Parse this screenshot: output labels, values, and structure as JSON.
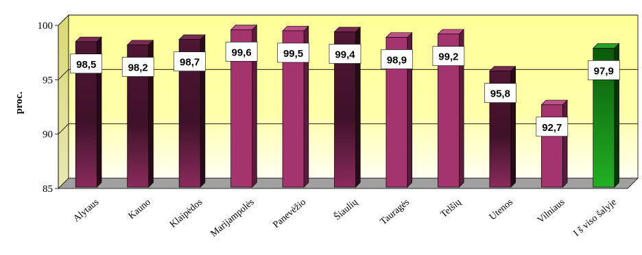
{
  "chart_data": {
    "type": "bar",
    "ylabel": "proc.",
    "ylim": [
      85,
      100
    ],
    "yticks": [
      85,
      90,
      95,
      100
    ],
    "grid": true,
    "categories": [
      "Alytaus",
      "Kauno",
      "Klaipėdos",
      "Marijampolės",
      "Panevėžio",
      "Šiaulių",
      "Tauragės",
      "Telšių",
      "Utenos",
      "Vilniaus",
      "I š viso šalyje"
    ],
    "values": [
      98.5,
      98.2,
      98.7,
      99.6,
      99.5,
      99.4,
      98.9,
      99.2,
      95.8,
      92.7,
      97.9
    ],
    "value_labels": [
      "98,5",
      "98,2",
      "98,7",
      "99,6",
      "99,5",
      "99,4",
      "98,9",
      "99,2",
      "95,8",
      "92,7",
      "97,9"
    ],
    "colors": {
      "wall_top": "#ffff99",
      "wall_bottom": "#fffff0",
      "floor": "#999999",
      "bar_purple": "#a0306a",
      "bar_dark": "#5a1a3a",
      "bar_green": "#0f8a0f"
    },
    "bar_styles": [
      "dark",
      "dark",
      "dark",
      "purple",
      "purple",
      "dark",
      "purple",
      "purple",
      "dark",
      "purple",
      "green"
    ]
  }
}
